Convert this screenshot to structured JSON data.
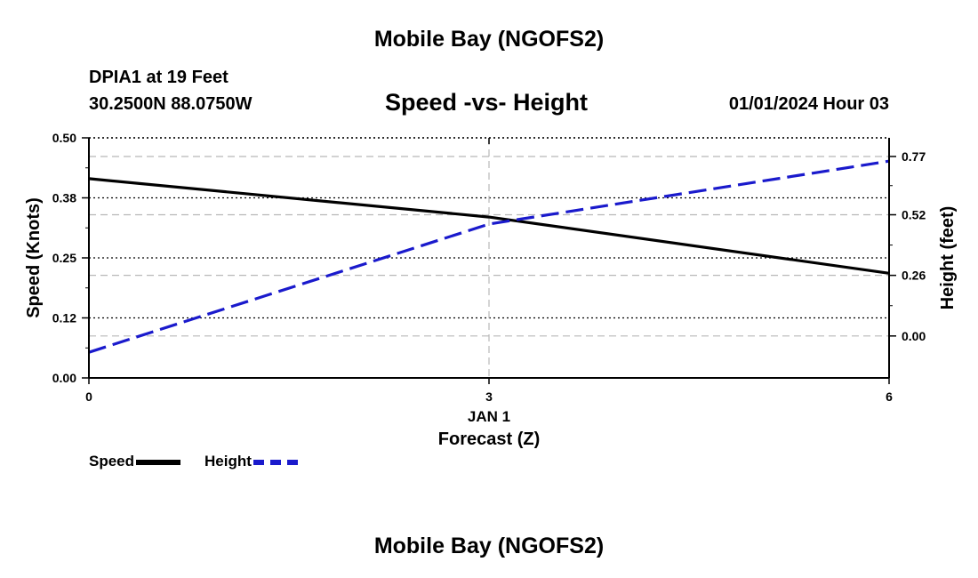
{
  "header": {
    "title": "Mobile Bay (NGOFS2)",
    "station": "DPIA1 at 19 Feet",
    "coords": "30.2500N  88.0750W",
    "subtitle": "Speed -vs- Height",
    "timestamp": "01/01/2024 Hour 03"
  },
  "footer": {
    "title": "Mobile Bay (NGOFS2)"
  },
  "legend": {
    "items": [
      {
        "label": "Speed",
        "color": "#000000",
        "style": "solid"
      },
      {
        "label": "Height",
        "color": "#1a1acc",
        "style": "dashed"
      }
    ]
  },
  "chart_data": {
    "type": "line",
    "title": "Speed -vs- Height",
    "xlabel": "Forecast (Z)",
    "x_date_label": "JAN 1",
    "xlim": [
      0,
      6
    ],
    "x_ticks": [
      0,
      3,
      6
    ],
    "x_tick_labels": [
      "0",
      "3",
      "6"
    ],
    "left_axis": {
      "label": "Speed (Knots)",
      "ylim": [
        0,
        0.5
      ],
      "ticks": [
        0.0,
        0.125,
        0.25,
        0.375,
        0.5
      ],
      "tick_labels": [
        "0.00",
        "0.12",
        "0.25",
        "0.38",
        "0.50"
      ]
    },
    "right_axis": {
      "label": "Height (feet)",
      "ylim": [
        -0.18,
        0.85
      ],
      "ticks": [
        0.0,
        0.26,
        0.52,
        0.77
      ],
      "tick_labels": [
        "0.00",
        "0.26",
        "0.52",
        "0.77"
      ]
    },
    "grid": true,
    "series": [
      {
        "name": "Speed",
        "axis": "left",
        "color": "#000000",
        "style": "solid",
        "x": [
          0,
          3,
          6
        ],
        "values": [
          0.415,
          0.335,
          0.218
        ]
      },
      {
        "name": "Height",
        "axis": "right",
        "color": "#1a1acc",
        "style": "dashed",
        "x": [
          0,
          3,
          6
        ],
        "values": [
          -0.07,
          0.48,
          0.75
        ]
      }
    ]
  }
}
